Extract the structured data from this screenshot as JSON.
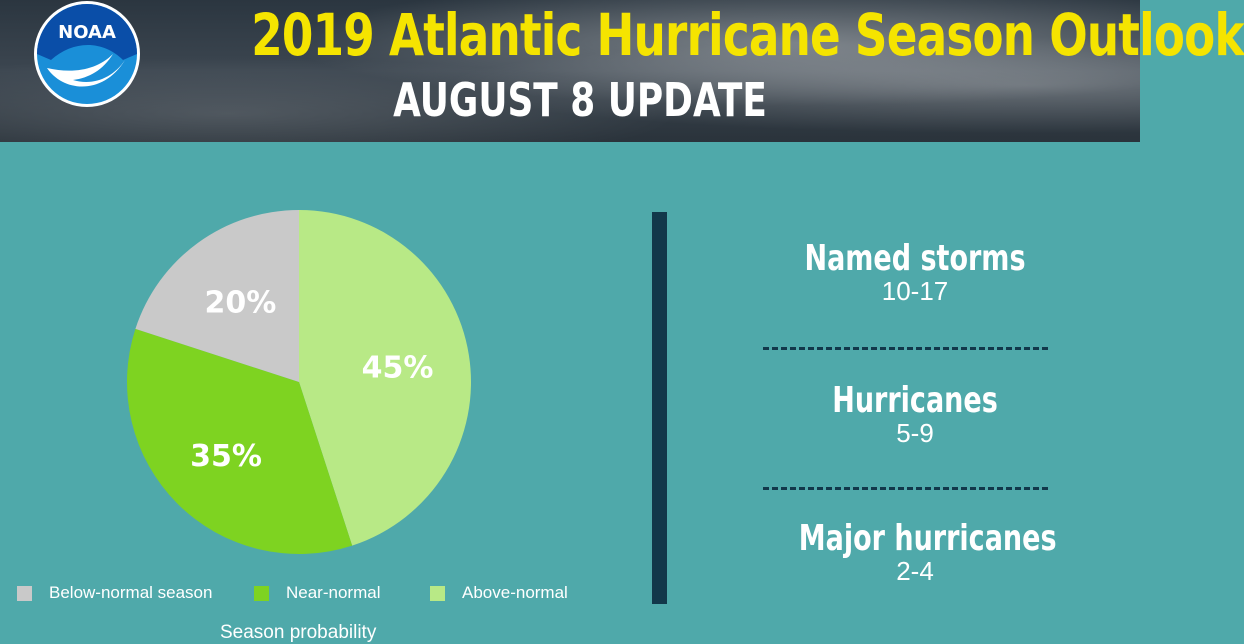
{
  "header": {
    "logo_text": "NOAA",
    "title": "2019 Atlantic Hurricane Season Outlook",
    "subtitle": "AUGUST 8 UPDATE"
  },
  "chart_data": {
    "type": "pie",
    "title": "",
    "caption": "Season probability",
    "series": [
      {
        "name": "Below-normal season",
        "value": 20,
        "label": "20%",
        "color": "#c9c9c9"
      },
      {
        "name": "Near-normal",
        "value": 35,
        "label": "35%",
        "color": "#7ed321"
      },
      {
        "name": "Above-normal",
        "value": 45,
        "label": "45%",
        "color": "#b8e986"
      }
    ],
    "legend": "bottom"
  },
  "stats": [
    {
      "label": "Named storms",
      "value": "10-17"
    },
    {
      "label": "Hurricanes",
      "value": "5-9"
    },
    {
      "label": "Major hurricanes",
      "value": "2-4"
    }
  ],
  "colors": {
    "background": "#4fa9aa",
    "title": "#f5e400",
    "divider": "#12384a"
  },
  "icons": {
    "logo": "noaa-logo-icon"
  }
}
